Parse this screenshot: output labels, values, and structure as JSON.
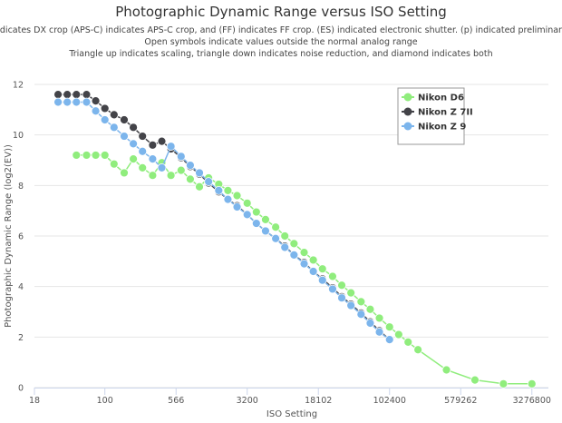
{
  "chart_data": {
    "type": "line",
    "title": "Photographic Dynamic Range versus ISO Setting",
    "subtitle": [
      "(DX) indicates DX crop (APS-C) indicates APS-C crop, and (FF) indicates FF crop. (ES) indicated electronic shutter. (p) indicated preliminary data.",
      "Open symbols indicate values outside the normal analog range",
      "Triangle up indicates scaling, triangle down indicates noise reduction, and diamond indicates both"
    ],
    "x_label": "ISO Setting",
    "y_label": "Photographic Dynamic Range (log2(EV))",
    "x_scale": "log",
    "xlim": [
      18,
      4900000
    ],
    "xticks": [
      18,
      100,
      566,
      3200,
      18102,
      102400,
      579262,
      3276800
    ],
    "ylim": [
      0,
      12
    ],
    "yticks": [
      0,
      2,
      4,
      6,
      8,
      10,
      12
    ],
    "grid": true,
    "legend": "top-right",
    "series": [
      {
        "name": "Nikon D6",
        "color": "#90ed7d",
        "x": [
          50,
          64,
          80,
          100,
          125,
          160,
          200,
          250,
          320,
          400,
          500,
          640,
          800,
          1000,
          1250,
          1600,
          2000,
          2500,
          3200,
          4000,
          5000,
          6400,
          8000,
          10000,
          12800,
          16000,
          20000,
          25600,
          32000,
          40000,
          51200,
          64000,
          80000,
          102400,
          128000,
          161000,
          204800,
          409600,
          819200,
          1638400,
          3276800
        ],
        "values": [
          9.2,
          9.2,
          9.2,
          9.2,
          8.85,
          8.5,
          9.05,
          8.7,
          8.4,
          8.9,
          8.4,
          8.6,
          8.25,
          7.95,
          8.3,
          8.05,
          7.8,
          7.6,
          7.3,
          6.95,
          6.65,
          6.35,
          6.0,
          5.7,
          5.35,
          5.05,
          4.7,
          4.4,
          4.05,
          3.75,
          3.4,
          3.1,
          2.75,
          2.4,
          2.1,
          1.8,
          1.5,
          0.7,
          0.3,
          0.15,
          0.15
        ]
      },
      {
        "name": "Nikon Z 7II",
        "color": "#434348",
        "x": [
          32,
          40,
          50,
          64,
          80,
          100,
          125,
          160,
          200,
          250,
          320,
          400,
          500,
          640,
          800,
          1000,
          1250,
          1600,
          2000,
          2500,
          3200,
          4000,
          5000,
          6400,
          8000,
          10000,
          12800,
          16000,
          20000,
          25600,
          32000,
          40000,
          51200,
          64000,
          80000,
          102400
        ],
        "values": [
          11.6,
          11.6,
          11.6,
          11.6,
          11.35,
          11.05,
          10.8,
          10.6,
          10.3,
          9.95,
          9.6,
          9.75,
          9.45,
          9.1,
          8.75,
          8.45,
          8.1,
          7.75,
          7.45,
          7.2,
          6.85,
          6.5,
          6.2,
          5.9,
          5.6,
          5.25,
          4.95,
          4.6,
          4.3,
          3.95,
          3.6,
          3.3,
          2.95,
          2.6,
          2.25,
          1.9
        ]
      },
      {
        "name": "Nikon Z 9",
        "color": "#7cb5ec",
        "x": [
          32,
          40,
          50,
          64,
          80,
          100,
          125,
          160,
          200,
          250,
          320,
          400,
          500,
          640,
          800,
          1000,
          1250,
          1600,
          2000,
          2500,
          3200,
          4000,
          5000,
          6400,
          8000,
          10000,
          12800,
          16000,
          20000,
          25600,
          32000,
          40000,
          51200,
          64000,
          80000,
          102400
        ],
        "values": [
          11.3,
          11.3,
          11.3,
          11.3,
          10.95,
          10.6,
          10.3,
          9.95,
          9.65,
          9.35,
          9.05,
          8.7,
          9.55,
          9.15,
          8.8,
          8.5,
          8.15,
          7.8,
          7.45,
          7.15,
          6.85,
          6.5,
          6.2,
          5.9,
          5.55,
          5.25,
          4.9,
          4.6,
          4.25,
          3.9,
          3.55,
          3.25,
          2.9,
          2.55,
          2.2,
          1.9
        ]
      }
    ]
  }
}
